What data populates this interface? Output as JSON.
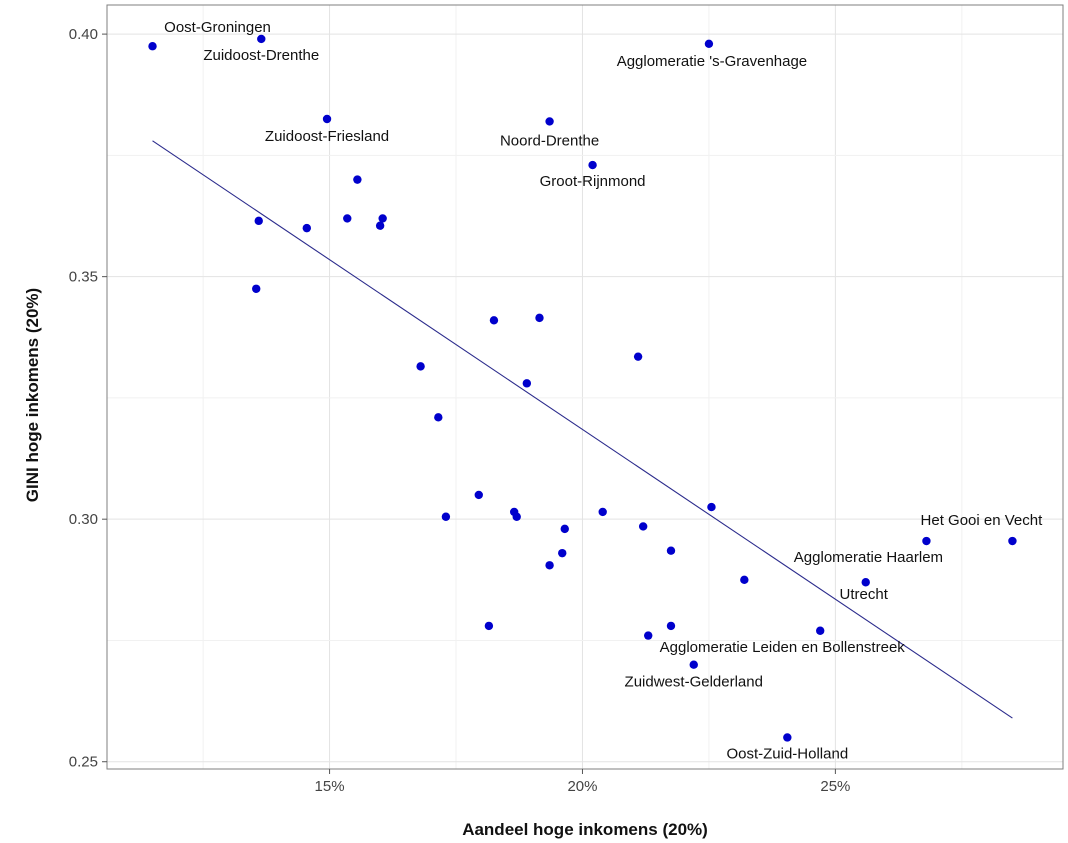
{
  "chart_data": {
    "type": "scatter",
    "title": "",
    "xlabel": "Aandeel hoge inkomens (20%)",
    "ylabel": "GINI hoge inkomens (20%)",
    "x_unit": "fraction",
    "xlim": [
      0.106,
      0.295
    ],
    "ylim": [
      0.2485,
      0.406
    ],
    "x_ticks": [
      {
        "value": 0.15,
        "label": "15%"
      },
      {
        "value": 0.2,
        "label": "20%"
      },
      {
        "value": 0.25,
        "label": "25%"
      }
    ],
    "y_ticks": [
      {
        "value": 0.25,
        "label": "0.25"
      },
      {
        "value": 0.3,
        "label": "0.30"
      },
      {
        "value": 0.35,
        "label": "0.35"
      },
      {
        "value": 0.4,
        "label": "0.40"
      }
    ],
    "grid": true,
    "point_color": "#0000cc",
    "trend_color": "#2b2b8c",
    "trendline": {
      "x": [
        0.115,
        0.285
      ],
      "y": [
        0.378,
        0.259
      ]
    },
    "points": [
      {
        "x": 0.115,
        "y": 0.3975,
        "label": "Oost-Groningen"
      },
      {
        "x": 0.1365,
        "y": 0.399,
        "label": "Zuidoost-Drenthe"
      },
      {
        "x": 0.1495,
        "y": 0.3825,
        "label": "Zuidoost-Friesland"
      },
      {
        "x": 0.225,
        "y": 0.398,
        "label": "Agglomeratie 's-Gravenhage"
      },
      {
        "x": 0.1935,
        "y": 0.382,
        "label": "Noord-Drenthe"
      },
      {
        "x": 0.202,
        "y": 0.373,
        "label": "Groot-Rijnmond"
      },
      {
        "x": 0.268,
        "y": 0.2955,
        "label": "Agglomeratie Haarlem"
      },
      {
        "x": 0.285,
        "y": 0.2955,
        "label": "Het Gooi en Vecht"
      },
      {
        "x": 0.256,
        "y": 0.287,
        "label": "Utrecht"
      },
      {
        "x": 0.247,
        "y": 0.277,
        "label": "Agglomeratie Leiden en Bollenstreek"
      },
      {
        "x": 0.222,
        "y": 0.27,
        "label": "Zuidwest-Gelderland"
      },
      {
        "x": 0.2405,
        "y": 0.255,
        "label": "Oost-Zuid-Holland"
      },
      {
        "x": 0.1555,
        "y": 0.37,
        "label": ""
      },
      {
        "x": 0.136,
        "y": 0.3615,
        "label": ""
      },
      {
        "x": 0.1455,
        "y": 0.36,
        "label": ""
      },
      {
        "x": 0.1535,
        "y": 0.362,
        "label": ""
      },
      {
        "x": 0.16,
        "y": 0.3605,
        "label": ""
      },
      {
        "x": 0.1605,
        "y": 0.362,
        "label": ""
      },
      {
        "x": 0.1355,
        "y": 0.3475,
        "label": ""
      },
      {
        "x": 0.1825,
        "y": 0.341,
        "label": ""
      },
      {
        "x": 0.1915,
        "y": 0.3415,
        "label": ""
      },
      {
        "x": 0.211,
        "y": 0.3335,
        "label": ""
      },
      {
        "x": 0.168,
        "y": 0.3315,
        "label": ""
      },
      {
        "x": 0.189,
        "y": 0.328,
        "label": ""
      },
      {
        "x": 0.1715,
        "y": 0.321,
        "label": ""
      },
      {
        "x": 0.1795,
        "y": 0.305,
        "label": ""
      },
      {
        "x": 0.173,
        "y": 0.3005,
        "label": ""
      },
      {
        "x": 0.1865,
        "y": 0.3015,
        "label": ""
      },
      {
        "x": 0.187,
        "y": 0.3005,
        "label": ""
      },
      {
        "x": 0.204,
        "y": 0.3015,
        "label": ""
      },
      {
        "x": 0.1965,
        "y": 0.298,
        "label": ""
      },
      {
        "x": 0.212,
        "y": 0.2985,
        "label": ""
      },
      {
        "x": 0.2255,
        "y": 0.3025,
        "label": ""
      },
      {
        "x": 0.196,
        "y": 0.293,
        "label": ""
      },
      {
        "x": 0.2175,
        "y": 0.2935,
        "label": ""
      },
      {
        "x": 0.1935,
        "y": 0.2905,
        "label": ""
      },
      {
        "x": 0.232,
        "y": 0.2875,
        "label": ""
      },
      {
        "x": 0.1815,
        "y": 0.278,
        "label": ""
      },
      {
        "x": 0.2175,
        "y": 0.278,
        "label": ""
      },
      {
        "x": 0.213,
        "y": 0.276,
        "label": ""
      }
    ]
  }
}
